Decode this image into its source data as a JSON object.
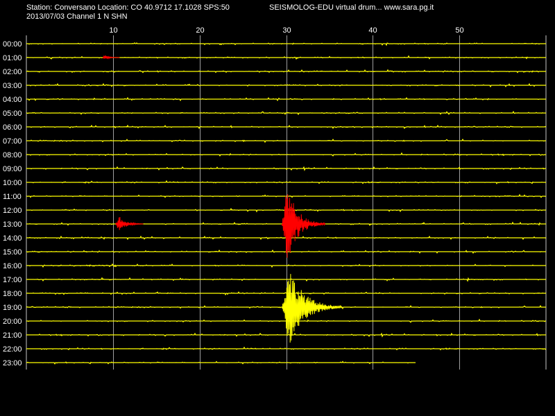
{
  "header": {
    "station_line": "Station: Conversano Location: CO 40.9712 17.1028 SPS:50",
    "software_line": "SEISMOLOG-EDU virtual drum... www.sara.pg.it",
    "date_line": "2013/07/03  Channel 1 N SHN"
  },
  "colors": {
    "background": "#000000",
    "trace": "#ffff00",
    "event": "#ff0000",
    "grid": "#c8c8c8",
    "text": "#ffffff"
  },
  "chart_data": {
    "type": "line",
    "title": "",
    "xlabel": "",
    "ylabel": "",
    "x_unit": "minutes",
    "xlim": [
      0,
      60
    ],
    "x_ticks": [
      10,
      20,
      30,
      40,
      50
    ],
    "grid": true,
    "hours": [
      "00:00",
      "01:00",
      "02:00",
      "03:00",
      "04:00",
      "05:00",
      "06:00",
      "07:00",
      "08:00",
      "09:00",
      "10:00",
      "11:00",
      "12:00",
      "13:00",
      "14:00",
      "15:00",
      "16:00",
      "17:00",
      "18:00",
      "19:00",
      "20:00",
      "21:00",
      "22:00",
      "23:00"
    ],
    "last_trace_end_minute": 45,
    "events": [
      {
        "hour_index": 1,
        "start_minute": 8.8,
        "end_minute": 10.8,
        "color": "event"
      },
      {
        "hour_index": 13,
        "start_minute": 10.3,
        "end_minute": 13.5,
        "color": "event"
      },
      {
        "hour_index": 13,
        "start_minute": 29.5,
        "end_minute": 34.5,
        "color": "event"
      },
      {
        "hour_index": 19,
        "start_minute": 29.5,
        "end_minute": 36.5,
        "color": "trace"
      }
    ]
  }
}
